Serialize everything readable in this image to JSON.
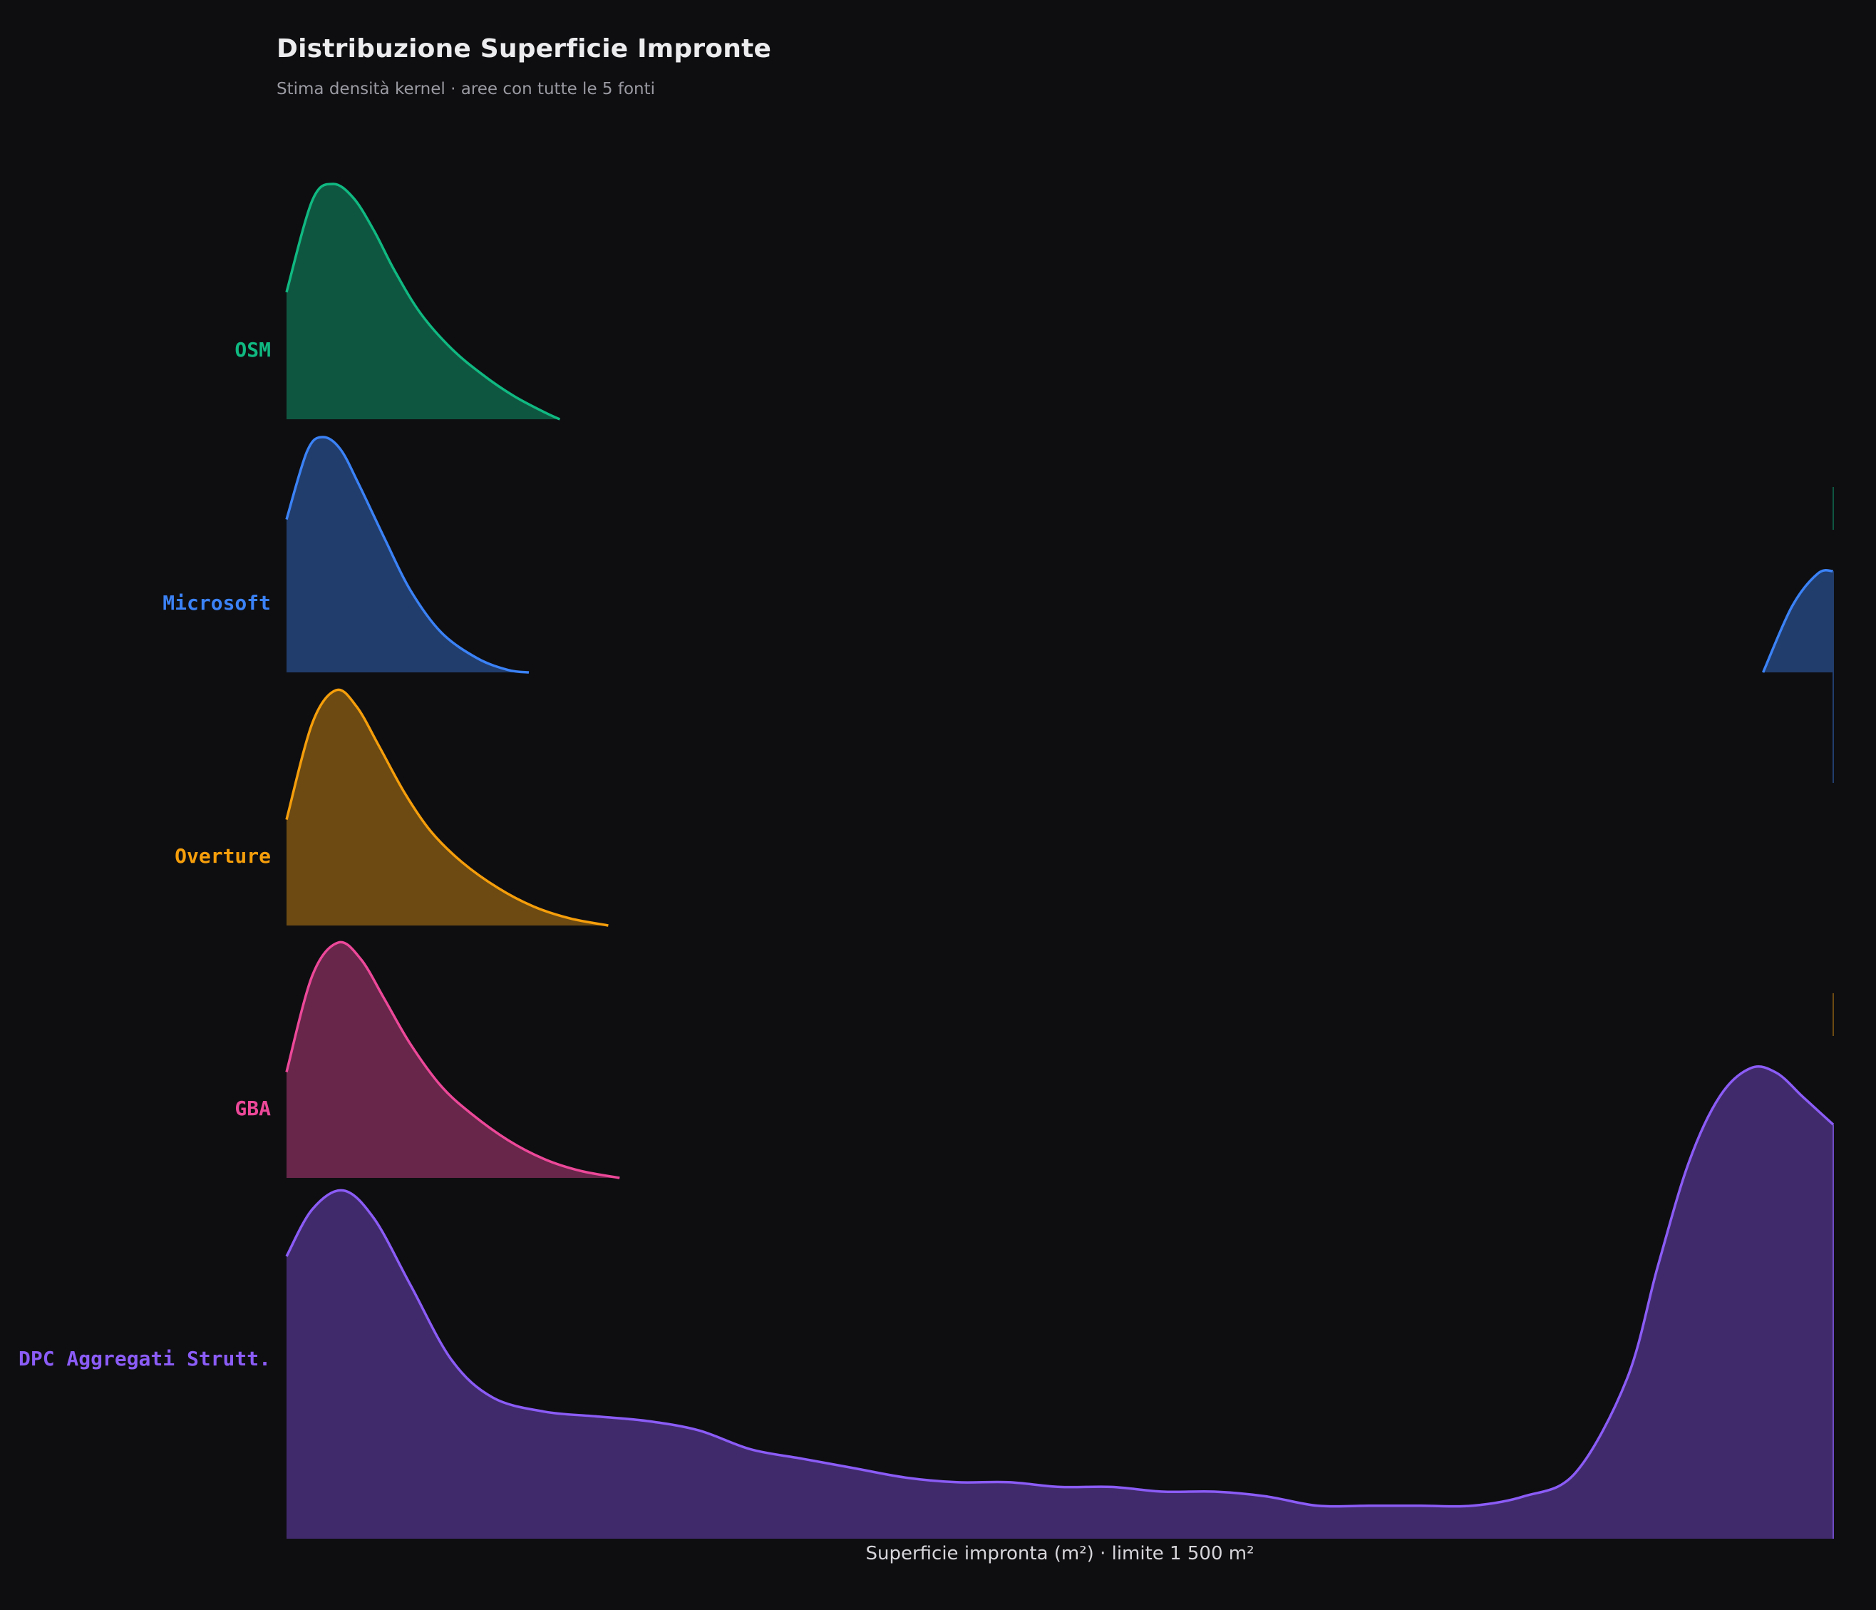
{
  "header": {
    "title": "Distribuzione Superficie Impronte",
    "subtitle": "Stima densità kernel · aree con tutte le 5 fonti"
  },
  "chart_data": {
    "type": "ridgeline",
    "title": "Distribuzione Superficie Impronte",
    "subtitle": "Stima densità kernel · aree con tutte le 5 fonti",
    "xlabel": "Superficie impronta (m²)  ·  limite 1 500 m²",
    "ylabel": "",
    "xlim": [
      0,
      1500
    ],
    "legend": "none",
    "grid": false,
    "series": [
      {
        "name": "OSM",
        "color": "#10b981",
        "fill": "#0f5640",
        "x": [
          0,
          25,
          45,
          65,
          85,
          105,
          130,
          160,
          190,
          220,
          250,
          265
        ],
        "density": [
          0.54,
          0.93,
          1.0,
          0.94,
          0.8,
          0.63,
          0.45,
          0.3,
          0.19,
          0.1,
          0.03,
          0.0
        ]
      },
      {
        "name": "Microsoft",
        "color": "#3b82f6",
        "fill": "#213d6c",
        "x": [
          0,
          20,
          35,
          52,
          70,
          95,
          120,
          150,
          185,
          215,
          235,
          1432,
          1460,
          1485,
          1500
        ],
        "density": [
          0.65,
          0.94,
          1.0,
          0.95,
          0.8,
          0.57,
          0.35,
          0.17,
          0.06,
          0.01,
          0.0,
          0.0,
          0.28,
          0.42,
          0.43
        ]
      },
      {
        "name": "Overture",
        "color": "#f59e0b",
        "fill": "#6c4a12",
        "x": [
          0,
          25,
          48,
          68,
          90,
          115,
          140,
          170,
          205,
          240,
          275,
          312
        ],
        "density": [
          0.45,
          0.86,
          1.0,
          0.93,
          0.76,
          0.56,
          0.4,
          0.27,
          0.16,
          0.08,
          0.03,
          0.0
        ]
      },
      {
        "name": "GBA",
        "color": "#ec4899",
        "fill": "#67264a",
        "x": [
          0,
          25,
          50,
          72,
          95,
          120,
          150,
          180,
          215,
          250,
          285,
          323
        ],
        "density": [
          0.45,
          0.86,
          1.0,
          0.93,
          0.76,
          0.57,
          0.39,
          0.27,
          0.16,
          0.08,
          0.03,
          0.0
        ]
      },
      {
        "name": "DPC Aggregati Strutt.",
        "color": "#8b5cf6",
        "fill": "#412a6c",
        "x": [
          0,
          25,
          55,
          85,
          120,
          160,
          200,
          250,
          300,
          350,
          400,
          450,
          500,
          550,
          600,
          650,
          700,
          750,
          800,
          850,
          900,
          950,
          1000,
          1050,
          1100,
          1150,
          1200,
          1250,
          1300,
          1330,
          1360,
          1390,
          1420,
          1445,
          1470,
          1490,
          1500
        ],
        "density": [
          0.6,
          0.7,
          0.74,
          0.68,
          0.54,
          0.38,
          0.3,
          0.27,
          0.26,
          0.25,
          0.23,
          0.19,
          0.17,
          0.15,
          0.13,
          0.12,
          0.12,
          0.11,
          0.11,
          0.1,
          0.1,
          0.09,
          0.07,
          0.07,
          0.07,
          0.07,
          0.09,
          0.14,
          0.34,
          0.58,
          0.8,
          0.94,
          1.0,
          0.99,
          0.94,
          0.9,
          0.88
        ]
      }
    ]
  }
}
